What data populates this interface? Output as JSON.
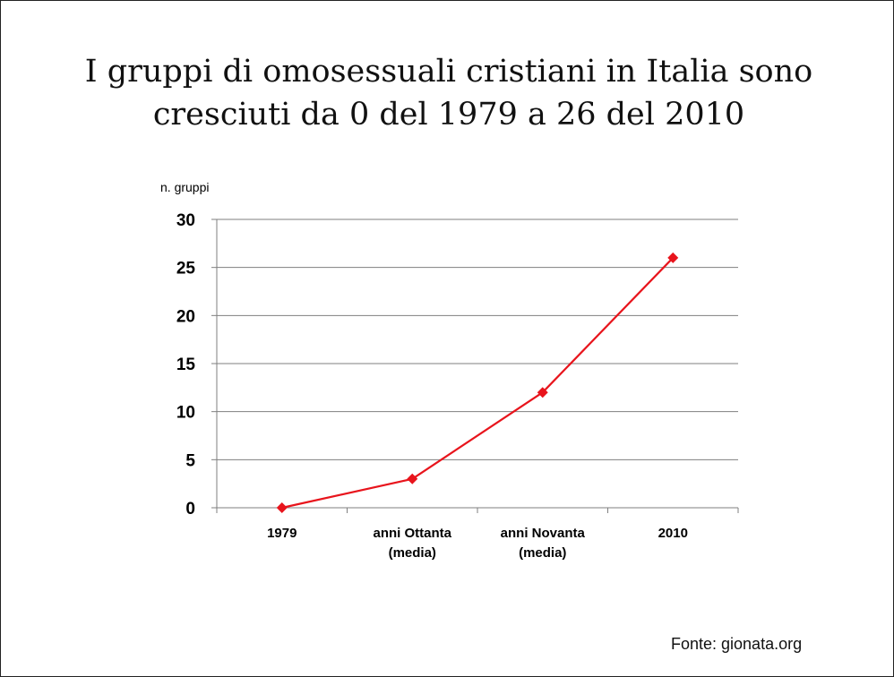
{
  "slide": {
    "title_line1": "I gruppi di omosessuali cristiani in Italia sono",
    "title_line2": "cresciuti da 0 del 1979 a 26 del 2010",
    "source": "Fonte: gionata.org"
  },
  "chart_data": {
    "type": "line",
    "title": "",
    "xlabel": "",
    "ylabel": "n. gruppi",
    "categories": [
      [
        "1979"
      ],
      [
        "anni Ottanta",
        "(media)"
      ],
      [
        "anni Novanta",
        "(media)"
      ],
      [
        "2010"
      ]
    ],
    "series": [
      {
        "values": [
          0,
          3,
          12,
          26
        ],
        "color": "#e8141c",
        "marker": "diamond"
      }
    ],
    "ylim": [
      0,
      30
    ],
    "yticks": [
      0,
      5,
      10,
      15,
      20,
      25,
      30
    ],
    "grid": true,
    "legend": "none"
  }
}
